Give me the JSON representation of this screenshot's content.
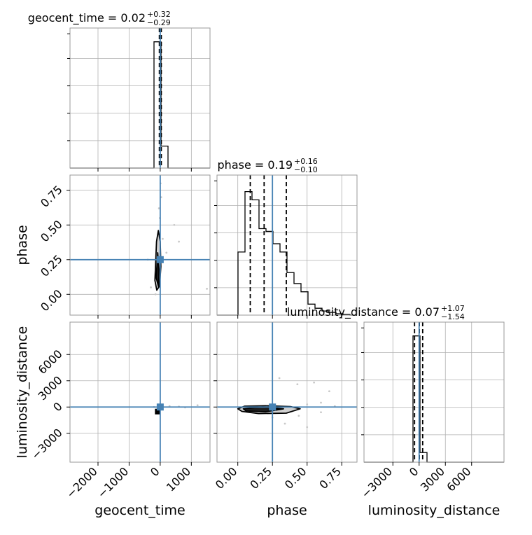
{
  "chart_data": {
    "type": "corner",
    "colors": {
      "truth": "#4682b4",
      "hist": "#000000",
      "grid": "#b0b0b0",
      "frame": "#999999"
    },
    "parameters": [
      "geocent_time",
      "phase",
      "luminosity_distance"
    ],
    "axis_labels": {
      "geocent_time": "geocent_time",
      "phase": "phase",
      "luminosity_distance": "luminosity_distance"
    },
    "ranges": {
      "geocent_time": [
        -2900,
        1600
      ],
      "phase": [
        -0.15,
        0.86
      ],
      "luminosity_distance": [
        -6300,
        9700
      ]
    },
    "ticks": {
      "geocent_time": {
        "values": [
          -2000,
          -1000,
          0,
          1000
        ],
        "labels": [
          "−2000",
          "−1000",
          "0",
          "1000"
        ]
      },
      "phase": {
        "values": [
          0.0,
          0.25,
          0.5,
          0.75
        ],
        "labels": [
          "0.00",
          "0.25",
          "0.50",
          "0.75"
        ]
      },
      "luminosity_distance": {
        "values": [
          -3000,
          0,
          3000,
          6000
        ],
        "labels": [
          "−3000",
          "0",
          "3000",
          "6000"
        ]
      }
    },
    "truths": {
      "geocent_time": 0,
      "phase": 0.25,
      "luminosity_distance": 0
    },
    "titles": {
      "geocent_time": {
        "main": "geocent_time = 0.02",
        "sup": "+0.32",
        "sub": "−0.29"
      },
      "phase": {
        "main": "phase = 0.19",
        "sup": "+0.16",
        "sub": "−0.10"
      },
      "luminosity_distance": {
        "main": "luminosity_distance = 0.07",
        "sup": "+1.07",
        "sub": "−1.54"
      }
    },
    "quantiles": {
      "geocent_time": [
        -0.27,
        0.02,
        0.34
      ],
      "phase": [
        0.09,
        0.19,
        0.35
      ],
      "luminosity_distance": [
        -1.47,
        0.07,
        1.14
      ]
    },
    "histograms": {
      "geocent_time": {
        "edges": [
          -2900,
          -2675,
          -2450,
          -2225,
          -2000,
          -1775,
          -1550,
          -1325,
          -1100,
          -875,
          -650,
          -425,
          -200,
          25,
          250,
          475,
          700,
          925,
          1150,
          1375,
          1600
        ],
        "counts": [
          0,
          0,
          0,
          0,
          0,
          0,
          0,
          0,
          0,
          0,
          0,
          0,
          0.92,
          0.16,
          0,
          0,
          0,
          0,
          0,
          0
        ],
        "ymax": 1.0
      },
      "phase": {
        "edges": [
          -0.15,
          -0.0995,
          -0.049,
          0.0015,
          0.052,
          0.1025,
          0.153,
          0.2035,
          0.254,
          0.3045,
          0.355,
          0.4055,
          0.456,
          0.5065,
          0.557,
          0.6075,
          0.658,
          0.7085,
          0.759,
          0.8095,
          0.86
        ],
        "counts": [
          0,
          0,
          0,
          0.46,
          0.9,
          0.84,
          0.63,
          0.61,
          0.52,
          0.46,
          0.31,
          0.23,
          0.17,
          0.08,
          0.05,
          0.03,
          0.02,
          0.01,
          0.005,
          0
        ],
        "ymax": 1.0
      },
      "luminosity_distance": {
        "edges": [
          -6300,
          -5500,
          -4700,
          -3900,
          -3100,
          -2300,
          -1500,
          -700,
          100,
          900,
          1700,
          2500,
          3300,
          4100,
          4900,
          5700,
          6500,
          7300,
          8100,
          8900,
          9700
        ],
        "counts": [
          0,
          0,
          0,
          0,
          0,
          0,
          0,
          0.92,
          0.07,
          0,
          0,
          0,
          0,
          0,
          0,
          0,
          0,
          0,
          0,
          0
        ],
        "ymax": 1.0
      }
    },
    "contours": {
      "phase_vs_geocent_time": [
        {
          "x": [
            -60,
            0,
            20,
            -20,
            -110,
            -170,
            -120,
            -60
          ],
          "y": [
            0.46,
            0.38,
            0.2,
            0.06,
            0.03,
            0.1,
            0.38,
            0.46
          ]
        },
        {
          "x": [
            -80,
            -40,
            -50,
            -130,
            -80
          ],
          "y": [
            0.3,
            0.18,
            0.05,
            0.12,
            0.3
          ]
        }
      ],
      "luminosity_distance_vs_phase": [
        {
          "x": [
            0.0,
            0.05,
            0.2,
            0.38,
            0.45,
            0.35,
            0.15,
            0.03,
            0.0
          ],
          "y": [
            -200,
            100,
            150,
            50,
            -200,
            -700,
            -750,
            -500,
            -200
          ]
        },
        {
          "x": [
            0.04,
            0.18,
            0.33,
            0.2,
            0.06,
            0.04
          ],
          "y": [
            -200,
            30,
            -200,
            -550,
            -450,
            -200
          ]
        }
      ]
    },
    "scatter_samples": {
      "phase_vs_geocent_time": [
        [
          -40,
          0.62
        ],
        [
          30,
          0.7
        ],
        [
          -10,
          0.55
        ],
        [
          450,
          0.5
        ],
        [
          600,
          0.38
        ],
        [
          -300,
          0.05
        ],
        [
          80,
          0.4
        ],
        [
          -150,
          0.0
        ],
        [
          200,
          0.3
        ],
        [
          1500,
          0.04
        ],
        [
          -400,
          0.25
        ],
        [
          10,
          0.8
        ]
      ],
      "luminosity_distance_vs_phase": [
        [
          0.6,
          500
        ],
        [
          0.66,
          1800
        ],
        [
          0.55,
          2800
        ],
        [
          0.44,
          -1000
        ],
        [
          0.34,
          -1900
        ],
        [
          0.5,
          -2300
        ],
        [
          0.3,
          3300
        ],
        [
          0.5,
          300
        ],
        [
          0.7,
          100
        ],
        [
          0.25,
          -1200
        ],
        [
          0.43,
          2600
        ],
        [
          0.6,
          -600
        ]
      ],
      "luminosity_distance_vs_geocent_time": [
        [
          -200,
          0
        ],
        [
          300,
          100
        ],
        [
          800,
          -50
        ],
        [
          1200,
          200
        ],
        [
          -100,
          -300
        ],
        [
          600,
          50
        ]
      ]
    },
    "grid": true
  }
}
